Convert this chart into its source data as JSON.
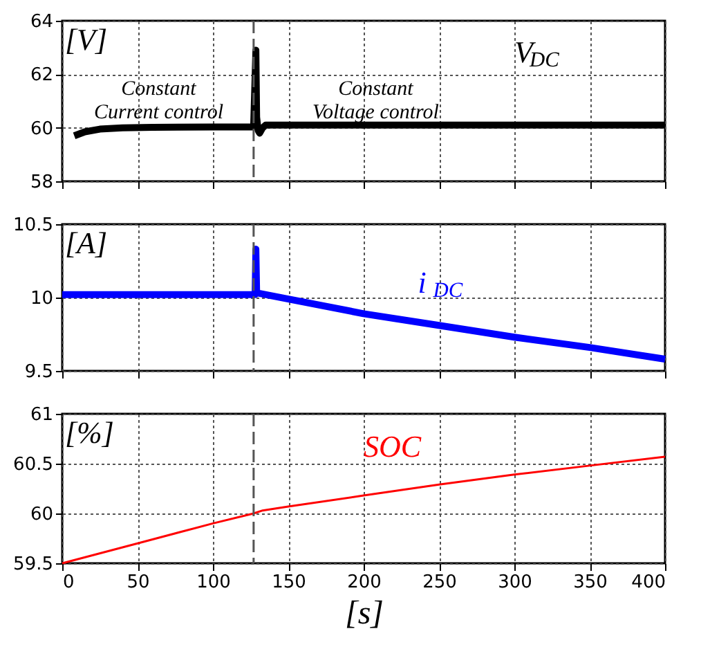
{
  "chart_data": [
    {
      "type": "line",
      "ylabel": "[V]",
      "xlim": [
        0,
        400
      ],
      "xticks": [
        0,
        50,
        100,
        150,
        200,
        250,
        300,
        350,
        400
      ],
      "ylim": [
        58,
        64
      ],
      "yticks": [
        58,
        60,
        62,
        64
      ],
      "grid": true,
      "tick_labels": "y",
      "series": [
        {
          "name": "V$_{DC}$",
          "color": "#000000",
          "x": [
            8,
            15,
            25,
            40,
            60,
            100,
            127,
            128.5,
            129,
            130,
            131,
            133,
            135,
            150,
            200,
            300,
            400
          ],
          "values": [
            59.7,
            59.85,
            59.95,
            60.0,
            60.02,
            60.03,
            60.03,
            62.9,
            60.4,
            59.9,
            59.8,
            60.0,
            60.1,
            60.1,
            60.1,
            60.1,
            60.1
          ]
        }
      ],
      "ref_lines": [
        {
          "axis": "x",
          "value": 127,
          "color": "#555555",
          "line_style": "dashed"
        }
      ],
      "annotations": [
        "Constant\nCurrent control",
        "Constant\nVoltage control"
      ]
    },
    {
      "type": "line",
      "ylabel": "[A]",
      "xlim": [
        0,
        400
      ],
      "xticks": [
        0,
        50,
        100,
        150,
        200,
        250,
        300,
        350,
        400
      ],
      "ylim": [
        9.5,
        10.5
      ],
      "yticks": [
        9.5,
        10,
        10.5
      ],
      "grid": true,
      "tick_labels": "y",
      "series": [
        {
          "name": "i$_{DC}$",
          "color": "#0000ff",
          "x": [
            0,
            50,
            100,
            128,
            128.5,
            129,
            130,
            150,
            200,
            250,
            300,
            350,
            400
          ],
          "values": [
            10.02,
            10.02,
            10.02,
            10.02,
            10.33,
            10.04,
            10.03,
            9.99,
            9.89,
            9.81,
            9.73,
            9.66,
            9.58
          ]
        }
      ],
      "ref_lines": [
        {
          "axis": "x",
          "value": 127,
          "color": "#555555",
          "line_style": "dashed"
        }
      ]
    },
    {
      "type": "line",
      "ylabel": "[%]",
      "xlabel": "[s]",
      "xlim": [
        0,
        400
      ],
      "xticks": [
        0,
        50,
        100,
        150,
        200,
        250,
        300,
        350,
        400
      ],
      "ylim": [
        59.5,
        61
      ],
      "yticks": [
        59.5,
        60,
        60.5,
        61
      ],
      "grid": true,
      "series": [
        {
          "name": "SOC",
          "color": "#ff0000",
          "x": [
            0,
            50,
            100,
            127,
            133,
            150,
            200,
            250,
            300,
            350,
            400
          ],
          "values": [
            59.5,
            59.7,
            59.9,
            60.0,
            60.03,
            60.07,
            60.18,
            60.29,
            60.39,
            60.48,
            60.57
          ]
        }
      ],
      "ref_lines": [
        {
          "axis": "x",
          "value": 127,
          "color": "#555555",
          "line_style": "dashed"
        }
      ]
    }
  ]
}
